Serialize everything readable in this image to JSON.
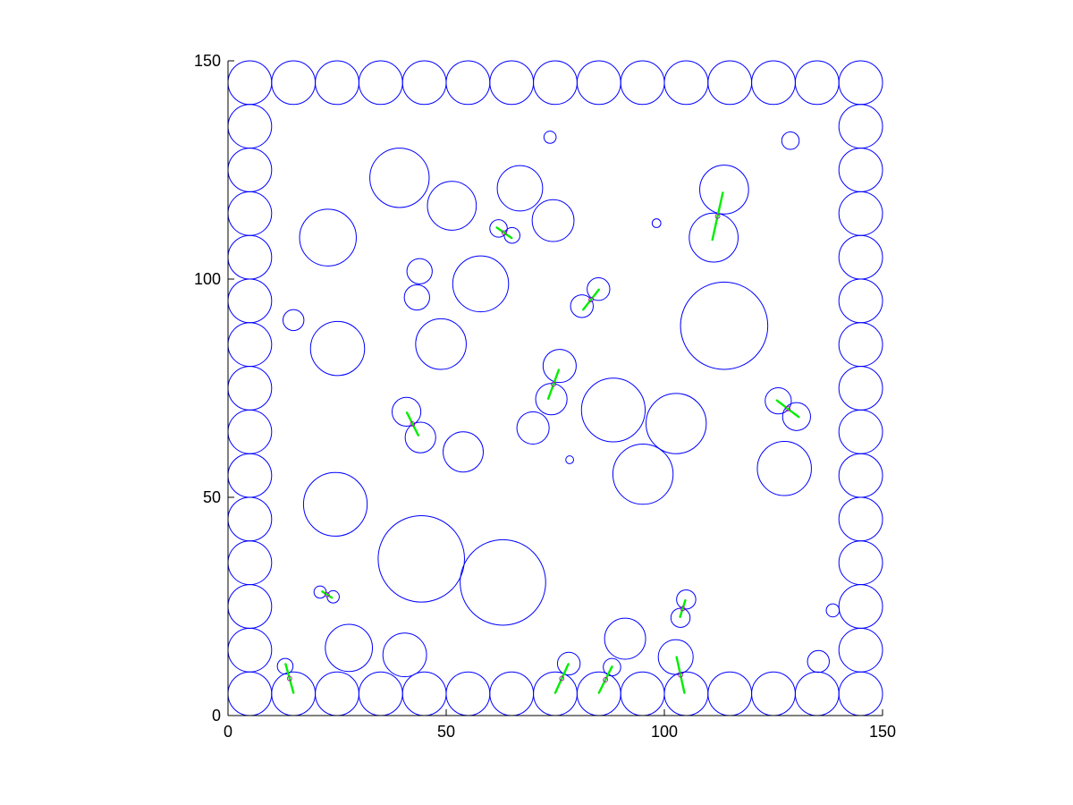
{
  "chart_data": {
    "type": "scatter",
    "title": "",
    "xlabel": "",
    "ylabel": "",
    "xlim": [
      0,
      150
    ],
    "ylim": [
      0,
      150
    ],
    "xticks": [
      0,
      50,
      100,
      150
    ],
    "yticks": [
      0,
      50,
      100,
      150
    ],
    "grid": false,
    "circle_color": "#0000ff",
    "contact_color": "#00ee00",
    "circles": [
      [
        5,
        145,
        5
      ],
      [
        15,
        145,
        5
      ],
      [
        25,
        145,
        5
      ],
      [
        35,
        145,
        5
      ],
      [
        45,
        145,
        5
      ],
      [
        55,
        145,
        5
      ],
      [
        65,
        145,
        5
      ],
      [
        75,
        145,
        5
      ],
      [
        85,
        145,
        5
      ],
      [
        95,
        145,
        5
      ],
      [
        105,
        145,
        5
      ],
      [
        115,
        145,
        5
      ],
      [
        125,
        145,
        5
      ],
      [
        135,
        145,
        5
      ],
      [
        145,
        145,
        5
      ],
      [
        5,
        5,
        5
      ],
      [
        15,
        5,
        5
      ],
      [
        25,
        5,
        5
      ],
      [
        35,
        5,
        5
      ],
      [
        45,
        5,
        5
      ],
      [
        55,
        5,
        5
      ],
      [
        65,
        5,
        5
      ],
      [
        75,
        5,
        5
      ],
      [
        85,
        5,
        5
      ],
      [
        95,
        5,
        5
      ],
      [
        105,
        5,
        5
      ],
      [
        115,
        5,
        5
      ],
      [
        125,
        5,
        5
      ],
      [
        135,
        5,
        5
      ],
      [
        145,
        5,
        5
      ],
      [
        5,
        135,
        5
      ],
      [
        5,
        125,
        5
      ],
      [
        5,
        115,
        5
      ],
      [
        5,
        105,
        5
      ],
      [
        5,
        95,
        5
      ],
      [
        5,
        85,
        5
      ],
      [
        5,
        75,
        5
      ],
      [
        5,
        65,
        5
      ],
      [
        5,
        55,
        5
      ],
      [
        5,
        45,
        5
      ],
      [
        5,
        35,
        5
      ],
      [
        5,
        25,
        5
      ],
      [
        5,
        15,
        5
      ],
      [
        145,
        135,
        5
      ],
      [
        145,
        125,
        5
      ],
      [
        145,
        115,
        5
      ],
      [
        145,
        105,
        5
      ],
      [
        145,
        95,
        5
      ],
      [
        145,
        85,
        5
      ],
      [
        145,
        75,
        5
      ],
      [
        145,
        65,
        5
      ],
      [
        145,
        55,
        5
      ],
      [
        145,
        45,
        5
      ],
      [
        145,
        35,
        5
      ],
      [
        145,
        25,
        5
      ],
      [
        145,
        15,
        5
      ],
      [
        73.8,
        132.5,
        1.4
      ],
      [
        128.9,
        131.7,
        2.0
      ],
      [
        39.3,
        123.2,
        6.8
      ],
      [
        51.3,
        116.8,
        5.6
      ],
      [
        66.9,
        120.8,
        5.2
      ],
      [
        74.5,
        113.4,
        4.8
      ],
      [
        113.7,
        120.5,
        5.6
      ],
      [
        111.3,
        109.5,
        5.6
      ],
      [
        98.2,
        112.8,
        1.0
      ],
      [
        22.9,
        109.5,
        6.5
      ],
      [
        62.0,
        111.6,
        2.0
      ],
      [
        65.1,
        110.0,
        1.8
      ],
      [
        43.9,
        101.8,
        2.9
      ],
      [
        43.3,
        95.8,
        2.9
      ],
      [
        57.9,
        98.9,
        6.4
      ],
      [
        15.0,
        90.6,
        2.4
      ],
      [
        84.9,
        97.7,
        2.6
      ],
      [
        81.1,
        93.8,
        2.6
      ],
      [
        113.7,
        89.3,
        10.0
      ],
      [
        25.1,
        84.1,
        6.2
      ],
      [
        48.8,
        85.1,
        5.8
      ],
      [
        76.0,
        80.1,
        3.8
      ],
      [
        74.1,
        72.5,
        3.6
      ],
      [
        88.3,
        70.0,
        7.3
      ],
      [
        102.7,
        66.9,
        6.9
      ],
      [
        126.1,
        72.1,
        3.0
      ],
      [
        130.3,
        68.5,
        3.2
      ],
      [
        40.9,
        69.6,
        3.3
      ],
      [
        44.1,
        63.7,
        3.5
      ],
      [
        69.9,
        65.9,
        3.7
      ],
      [
        53.9,
        60.4,
        4.6
      ],
      [
        78.3,
        58.6,
        0.9
      ],
      [
        95.1,
        55.3,
        6.9
      ],
      [
        127.5,
        56.6,
        6.2
      ],
      [
        24.6,
        48.4,
        7.3
      ],
      [
        44.3,
        35.9,
        9.9
      ],
      [
        63.0,
        30.5,
        9.8
      ],
      [
        21.1,
        28.3,
        1.4
      ],
      [
        24.1,
        27.2,
        1.4
      ],
      [
        105.0,
        26.6,
        2.2
      ],
      [
        103.7,
        22.4,
        2.2
      ],
      [
        138.6,
        24.1,
        1.5
      ],
      [
        91.0,
        17.6,
        4.7
      ],
      [
        27.7,
        15.5,
        5.4
      ],
      [
        40.5,
        13.9,
        5.0
      ],
      [
        13.1,
        11.3,
        1.8
      ],
      [
        78.1,
        11.9,
        2.6
      ],
      [
        88.0,
        11.1,
        2.0
      ],
      [
        102.6,
        13.4,
        4.0
      ],
      [
        135.3,
        12.4,
        2.5
      ]
    ],
    "contacts": [
      [
        [
          111.0,
          109.0
        ],
        [
          113.4,
          119.8
        ]
      ],
      [
        [
          61.6,
          111.8
        ],
        [
          65.0,
          109.4
        ]
      ],
      [
        [
          81.4,
          93.0
        ],
        [
          85.0,
          97.6
        ]
      ],
      [
        [
          73.4,
          72.6
        ],
        [
          75.8,
          79.2
        ]
      ],
      [
        [
          125.8,
          72.2
        ],
        [
          130.8,
          68.4
        ]
      ],
      [
        [
          41.0,
          69.4
        ],
        [
          43.6,
          64.2
        ]
      ],
      [
        [
          21.6,
          28.4
        ],
        [
          23.8,
          27.0
        ]
      ],
      [
        [
          103.6,
          22.6
        ],
        [
          104.8,
          26.4
        ]
      ],
      [
        [
          13.2,
          11.8
        ],
        [
          15.0,
          5.2
        ]
      ],
      [
        [
          75.0,
          5.2
        ],
        [
          78.0,
          11.8
        ]
      ],
      [
        [
          85.0,
          5.2
        ],
        [
          88.0,
          11.2
        ]
      ],
      [
        [
          102.8,
          13.4
        ],
        [
          104.6,
          5.2
        ]
      ]
    ]
  }
}
